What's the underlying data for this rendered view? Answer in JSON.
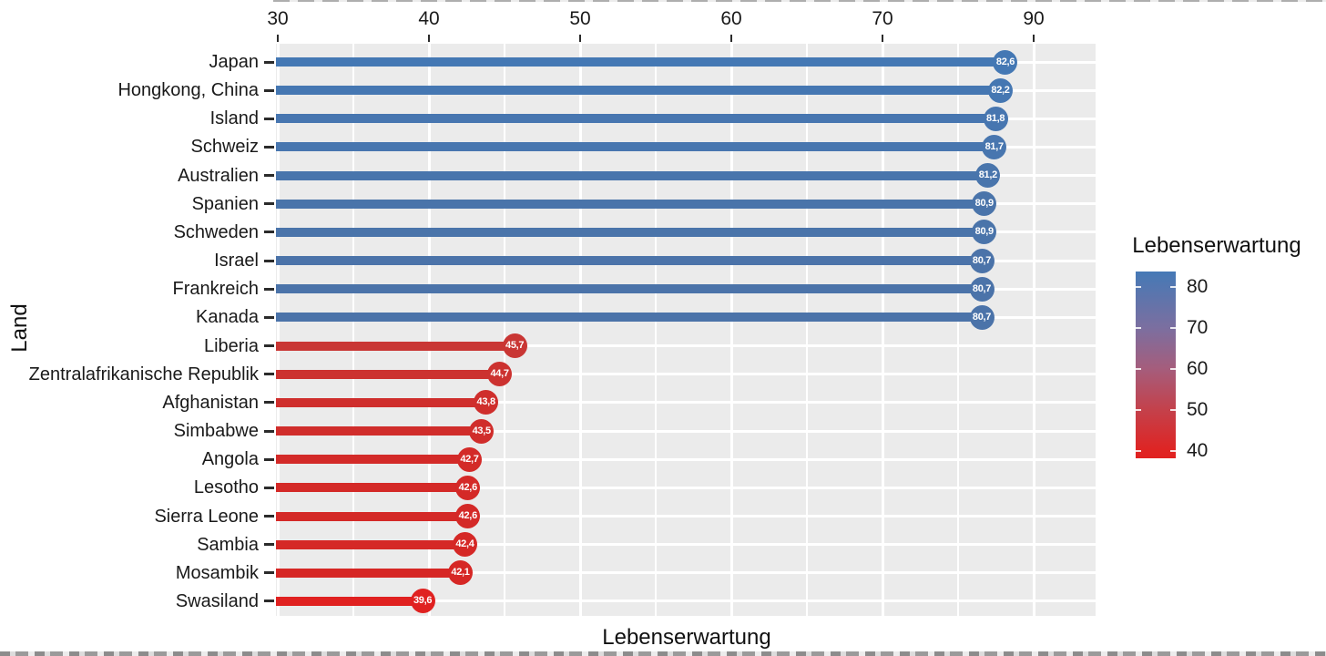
{
  "chart_data": {
    "type": "bar",
    "orientation": "horizontal",
    "title": "",
    "xlabel": "Lebenserwartung",
    "ylabel": "Land",
    "x_tick_labels": [
      "30",
      "40",
      "50",
      "60",
      "70",
      "90"
    ],
    "grid": true,
    "panel_bg": "#ebebeb",
    "grid_color": "#ffffff",
    "categories": [
      "Japan",
      "Hongkong, China",
      "Island",
      "Schweiz",
      "Australien",
      "Spanien",
      "Schweden",
      "Israel",
      "Frankreich",
      "Kanada",
      "Liberia",
      "Zentralafrikanische Republik",
      "Afghanistan",
      "Simbabwe",
      "Angola",
      "Lesotho",
      "Sierra Leone",
      "Sambia",
      "Mosambik",
      "Swasiland"
    ],
    "values": [
      82.6,
      82.2,
      81.8,
      81.7,
      81.2,
      80.9,
      80.9,
      80.7,
      80.7,
      80.7,
      45.7,
      44.7,
      43.8,
      43.5,
      42.7,
      42.6,
      42.6,
      42.4,
      42.1,
      39.6
    ],
    "value_labels": [
      "82,6",
      "82,2",
      "81,8",
      "81,7",
      "81,2",
      "80,9",
      "80,9",
      "80,7",
      "80,7",
      "80,7",
      "45,7",
      "44,7",
      "43,8",
      "43,5",
      "42,7",
      "42,6",
      "42,6",
      "42,4",
      "42,1",
      "39,6"
    ],
    "bar_colors": [
      "#4478b4",
      "#4577b2",
      "#4776b0",
      "#4876af",
      "#4975ac",
      "#4a74aa",
      "#4a74aa",
      "#4b73a9",
      "#4b73a9",
      "#4b73a9",
      "#c93634",
      "#cc3230",
      "#cf2e2c",
      "#d02d2b",
      "#d32a28",
      "#d42927",
      "#d42927",
      "#d52826",
      "#d62725",
      "#e02120"
    ],
    "legend": {
      "title": "Lebenserwartung",
      "position": "right",
      "tick_labels": [
        "80",
        "70",
        "60",
        "50",
        "40"
      ],
      "gradient_stops": [
        {
          "pos": 0.0,
          "color": "#4579b6"
        },
        {
          "pos": 0.3,
          "color": "#7b6fa0"
        },
        {
          "pos": 0.52,
          "color": "#a55d7c"
        },
        {
          "pos": 0.74,
          "color": "#c4414b"
        },
        {
          "pos": 0.96,
          "color": "#df2423"
        },
        {
          "pos": 1.0,
          "color": "#e12120"
        }
      ]
    }
  }
}
